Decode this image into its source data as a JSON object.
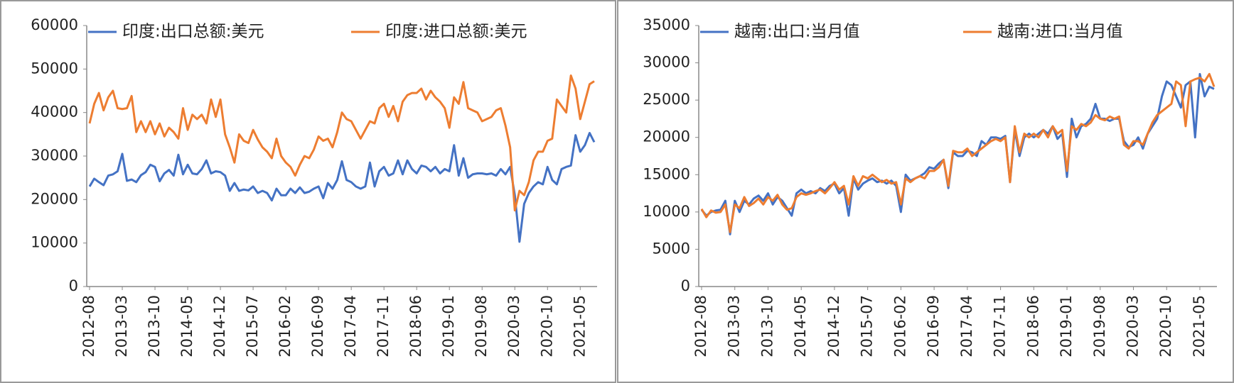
{
  "chart_data": [
    {
      "type": "line",
      "categories": [
        "2012-08",
        null,
        null,
        null,
        null,
        null,
        null,
        "2013-03",
        null,
        null,
        null,
        null,
        null,
        null,
        "2013-10",
        null,
        null,
        null,
        null,
        null,
        null,
        "2014-05",
        null,
        null,
        null,
        null,
        null,
        null,
        "2014-12",
        null,
        null,
        null,
        null,
        null,
        null,
        "2015-07",
        null,
        null,
        null,
        null,
        null,
        null,
        "2016-02",
        null,
        null,
        null,
        null,
        null,
        null,
        "2016-09",
        null,
        null,
        null,
        null,
        null,
        null,
        "2017-04",
        null,
        null,
        null,
        null,
        null,
        null,
        "2017-11",
        null,
        null,
        null,
        null,
        null,
        null,
        "2018-06",
        null,
        null,
        null,
        null,
        null,
        null,
        "2019-01",
        null,
        null,
        null,
        null,
        null,
        null,
        "2019-08",
        null,
        null,
        null,
        null,
        null,
        null,
        "2020-03",
        null,
        null,
        null,
        null,
        null,
        null,
        "2020-10",
        null,
        null,
        null,
        null,
        null,
        null,
        "2021-05",
        null,
        null,
        null
      ],
      "series": [
        {
          "name": "印度:出口总额:美元",
          "color": "#4472c4",
          "values": [
            23000,
            24800,
            24000,
            23300,
            25500,
            25800,
            26500,
            30500,
            24300,
            24600,
            24000,
            25600,
            26300,
            28000,
            27500,
            24200,
            26000,
            26800,
            25500,
            30300,
            25800,
            28000,
            26000,
            25800,
            27000,
            29000,
            26000,
            26500,
            26300,
            25500,
            22000,
            23800,
            22000,
            22300,
            22100,
            23000,
            21500,
            22000,
            21500,
            19800,
            22500,
            21000,
            21000,
            22500,
            21500,
            22800,
            21500,
            21800,
            22500,
            23000,
            20300,
            23800,
            22500,
            24500,
            28800,
            24500,
            24000,
            23000,
            22500,
            23000,
            28500,
            23000,
            26500,
            27500,
            25500,
            26000,
            29000,
            25800,
            29000,
            27000,
            26000,
            27800,
            27500,
            26500,
            27500,
            26000,
            27000,
            26500,
            32500,
            25500,
            29500,
            25000,
            25800,
            26000,
            26000,
            25800,
            26000,
            25500,
            27000,
            25800,
            27500,
            21000,
            10300,
            19000,
            21500,
            23000,
            24000,
            23500,
            27500,
            24500,
            23500,
            27000,
            27500,
            27800,
            34800,
            31000,
            32500,
            35300,
            33200
          ]
        },
        {
          "name": "印度:进口总额:美元",
          "color": "#ed7d31",
          "values": [
            37500,
            42000,
            44500,
            40500,
            43500,
            45000,
            41000,
            40800,
            41000,
            43800,
            35500,
            38000,
            35500,
            38000,
            35000,
            37500,
            34500,
            36500,
            35500,
            34000,
            41000,
            36000,
            39500,
            38500,
            39500,
            37500,
            43000,
            39000,
            43000,
            35000,
            32000,
            28500,
            35000,
            33500,
            33000,
            36000,
            33800,
            32000,
            31000,
            29500,
            34000,
            30000,
            28500,
            27500,
            25500,
            28000,
            30000,
            29500,
            31500,
            34500,
            33500,
            34000,
            32000,
            35500,
            40000,
            38500,
            38000,
            36000,
            34000,
            36000,
            38000,
            37500,
            41000,
            42000,
            39000,
            41500,
            38000,
            42500,
            44000,
            44500,
            44500,
            45500,
            43000,
            45000,
            43500,
            42500,
            41000,
            36500,
            43500,
            42000,
            47000,
            41000,
            40500,
            40000,
            38000,
            38500,
            39000,
            40500,
            41000,
            37000,
            32000,
            17500,
            22000,
            21000,
            24000,
            29000,
            31000,
            31000,
            33500,
            34000,
            43000,
            41500,
            40000,
            48500,
            45500,
            38500,
            42500,
            46500,
            47200
          ]
        }
      ],
      "ylim": [
        0,
        60000
      ],
      "yticks": [
        0,
        10000,
        20000,
        30000,
        40000,
        50000,
        60000
      ]
    },
    {
      "type": "line",
      "categories": [
        "2012-08",
        null,
        null,
        null,
        null,
        null,
        null,
        "2013-03",
        null,
        null,
        null,
        null,
        null,
        null,
        "2013-10",
        null,
        null,
        null,
        null,
        null,
        null,
        "2014-05",
        null,
        null,
        null,
        null,
        null,
        null,
        "2014-12",
        null,
        null,
        null,
        null,
        null,
        null,
        "2015-07",
        null,
        null,
        null,
        null,
        null,
        null,
        "2016-02",
        null,
        null,
        null,
        null,
        null,
        null,
        "2016-09",
        null,
        null,
        null,
        null,
        null,
        null,
        "2017-04",
        null,
        null,
        null,
        null,
        null,
        null,
        "2017-11",
        null,
        null,
        null,
        null,
        null,
        null,
        "2018-06",
        null,
        null,
        null,
        null,
        null,
        null,
        "2019-01",
        null,
        null,
        null,
        null,
        null,
        null,
        "2019-08",
        null,
        null,
        null,
        null,
        null,
        null,
        "2020-03",
        null,
        null,
        null,
        null,
        null,
        null,
        "2020-10",
        null,
        null,
        null,
        null,
        null,
        null,
        "2021-05",
        null,
        null,
        null
      ],
      "series": [
        {
          "name": "越南:出口:当月值",
          "color": "#4472c4",
          "values": [
            10300,
            9500,
            10000,
            10200,
            10300,
            11500,
            7000,
            11500,
            10000,
            11500,
            11000,
            11800,
            12200,
            11500,
            12500,
            11000,
            12000,
            11500,
            10500,
            9500,
            12500,
            13000,
            12500,
            12800,
            12500,
            13200,
            12800,
            13500,
            13800,
            12500,
            13200,
            9500,
            14500,
            13000,
            13800,
            14200,
            14500,
            14000,
            14200,
            13800,
            14200,
            13500,
            10000,
            15000,
            14200,
            14500,
            14800,
            15200,
            16000,
            15800,
            16500,
            17000,
            13200,
            18000,
            17500,
            17500,
            18200,
            18000,
            17500,
            19500,
            19000,
            20000,
            20000,
            19800,
            20200,
            14000,
            21000,
            17500,
            20000,
            20500,
            20000,
            20500,
            21000,
            20500,
            21500,
            19800,
            20500,
            14700,
            22500,
            20000,
            21500,
            21800,
            22500,
            24500,
            22500,
            22500,
            22200,
            22500,
            22500,
            19500,
            18700,
            19000,
            20000,
            18500,
            20500,
            21500,
            22500,
            25500,
            27500,
            27000,
            25500,
            24000,
            27000,
            27500,
            20000,
            28500,
            25500,
            26800,
            26500
          ]
        },
        {
          "name": "越南:进口:当月值",
          "color": "#ed7d31",
          "values": [
            10400,
            9300,
            10200,
            9900,
            10000,
            11000,
            7300,
            11000,
            10500,
            12000,
            10800,
            11200,
            11800,
            11000,
            12000,
            11500,
            12300,
            11000,
            10300,
            10500,
            12000,
            12500,
            12300,
            12500,
            12800,
            13000,
            12500,
            13200,
            14000,
            13000,
            13500,
            11000,
            14800,
            13500,
            14800,
            14500,
            15000,
            14500,
            14000,
            14300,
            13800,
            14000,
            11000,
            14500,
            14000,
            14500,
            14800,
            14500,
            15500,
            15500,
            16000,
            17000,
            13500,
            18200,
            18000,
            18000,
            18500,
            17500,
            18000,
            18500,
            19000,
            19500,
            19800,
            19500,
            20000,
            14000,
            21500,
            18000,
            20500,
            20000,
            20500,
            20000,
            21000,
            20000,
            21500,
            20500,
            21000,
            15500,
            21500,
            21000,
            21800,
            21500,
            22000,
            23000,
            22500,
            22300,
            22800,
            22500,
            22800,
            19000,
            18500,
            19500,
            19500,
            19000,
            20500,
            22000,
            23000,
            23500,
            24000,
            24500,
            27500,
            27000,
            21500,
            27500,
            27800,
            28000,
            27500,
            28500,
            26800
          ]
        }
      ],
      "ylim": [
        0,
        35000
      ],
      "yticks": [
        0,
        5000,
        10000,
        15000,
        20000,
        25000,
        30000,
        35000
      ]
    }
  ]
}
